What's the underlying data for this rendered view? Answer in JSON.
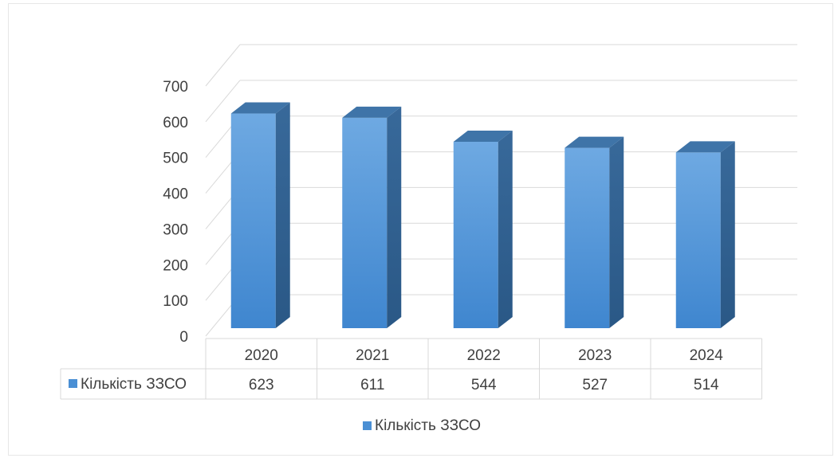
{
  "chart_data": {
    "type": "bar",
    "three_d": true,
    "categories": [
      "2020",
      "2021",
      "2022",
      "2023",
      "2024"
    ],
    "series": [
      {
        "name": "Кількість ЗЗСО",
        "values": [
          623,
          611,
          544,
          527,
          514
        ]
      }
    ],
    "ylim": [
      0,
      700
    ],
    "y_ticks": [
      "0",
      "100",
      "200",
      "300",
      "400",
      "500",
      "600",
      "700"
    ],
    "grid": true,
    "data_table": true,
    "legend": {
      "position": "bottom",
      "label": "Кількість ЗЗСО"
    },
    "colors": {
      "front": "#4a8fd4",
      "front_top": "#6aa6e0",
      "side": "#2f5f8e",
      "top": "#3f74a8",
      "legend_marker": "#4a8fd4",
      "grid": "#d9d9d9"
    }
  }
}
